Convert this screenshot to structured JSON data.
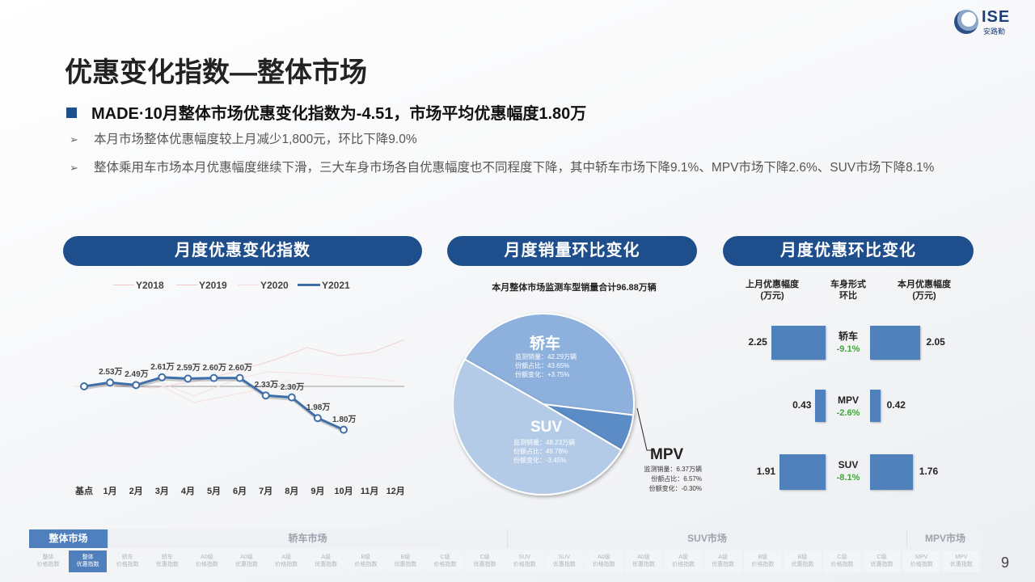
{
  "logo": {
    "text": "ISE",
    "sub": "安路勤"
  },
  "title": "优惠变化指数—整体市场",
  "headline": "MADE·10月整体市场优惠变化指数为-4.51，市场平均优惠幅度1.80万",
  "bullets": [
    "本月市场整体优惠幅度较上月减少1,800元，环比下降9.0%",
    "整体乘用车市场本月优惠幅度继续下滑，三大车身市场各自优惠幅度也不同程度下降，其中轿车市场下降9.1%、MPV市场下降2.6%、SUV市场下降8.1%"
  ],
  "sections": {
    "index": "月度优惠变化指数",
    "sales": "月度销量环比变化",
    "discount": "月度优惠环比变化"
  },
  "chart_data": [
    {
      "type": "line",
      "categories": [
        "基点",
        "1月",
        "2月",
        "3月",
        "4月",
        "5月",
        "6月",
        "7月",
        "8月",
        "9月",
        "10月",
        "11月",
        "12月"
      ],
      "legend": [
        "Y2018",
        "Y2019",
        "Y2020",
        "Y2021"
      ],
      "series": [
        {
          "name": "Y2021",
          "values": [
            2.47,
            2.53,
            2.49,
            2.61,
            2.59,
            2.6,
            2.6,
            2.33,
            2.3,
            1.98,
            1.8,
            null,
            null
          ],
          "labels": [
            "",
            "2.53万",
            "2.49万",
            "2.61万",
            "2.59万",
            "2.60万",
            "2.60万",
            "2.33万",
            "2.30万",
            "1.98万",
            "1.80万",
            "",
            ""
          ]
        }
      ]
    },
    {
      "type": "pie",
      "title": "本月整体市场监测车型销量合计96.88万辆",
      "slices": [
        {
          "name": "轿车",
          "share": 43.65,
          "info": [
            "监测销量：42.29万辆",
            "份额占比：43.65%",
            "份额变化：+3.75%"
          ]
        },
        {
          "name": "SUV",
          "share": 49.78,
          "info": [
            "监测销量：48.23万辆",
            "份额占比：49.78%",
            "份额变化：-3.45%"
          ]
        },
        {
          "name": "MPV",
          "share": 6.57,
          "info": [
            "监测销量：6.37万辆",
            "份额占比：6.57%",
            "份额变化：-0.30%"
          ]
        }
      ]
    },
    {
      "type": "bar",
      "headers": [
        "上月优惠幅度\n(万元)",
        "车身形式\n环比",
        "本月优惠幅度\n(万元)"
      ],
      "rows": [
        {
          "name": "轿车",
          "pct": "-9.1%",
          "last": 2.25,
          "last_label": "2.25",
          "this": 2.05,
          "this_label": "2.05"
        },
        {
          "name": "MPV",
          "pct": "-2.6%",
          "last": 0.43,
          "last_label": "0.43",
          "this": 0.42,
          "this_label": "0.42"
        },
        {
          "name": "SUV",
          "pct": "-8.1%",
          "last": 1.91,
          "last_label": "1.91",
          "this": 1.76,
          "this_label": "1.76"
        }
      ]
    }
  ],
  "nav": {
    "groups": [
      "整体市场",
      "轿车市场",
      "SUV市场",
      "MPV市场"
    ],
    "items": [
      [
        "整体",
        "价格指数"
      ],
      [
        "整体",
        "优惠指数"
      ],
      [
        "轿车",
        "价格指数"
      ],
      [
        "轿车",
        "优惠指数"
      ],
      [
        "A0级",
        "价格指数"
      ],
      [
        "A0级",
        "优惠指数"
      ],
      [
        "A级",
        "价格指数"
      ],
      [
        "A级",
        "优惠指数"
      ],
      [
        "B级",
        "价格指数"
      ],
      [
        "B级",
        "优惠指数"
      ],
      [
        "C级",
        "价格指数"
      ],
      [
        "C级",
        "优惠指数"
      ],
      [
        "SUV",
        "价格指数"
      ],
      [
        "SUV",
        "优惠指数"
      ],
      [
        "A0级",
        "价格指数"
      ],
      [
        "A0级",
        "优惠指数"
      ],
      [
        "A级",
        "价格指数"
      ],
      [
        "A级",
        "优惠指数"
      ],
      [
        "B级",
        "价格指数"
      ],
      [
        "B级",
        "优惠指数"
      ],
      [
        "C级",
        "价格指数"
      ],
      [
        "C级",
        "优惠指数"
      ],
      [
        "MPV",
        "价格指数"
      ],
      [
        "MPV",
        "优惠指数"
      ]
    ]
  },
  "page_number": "9",
  "colors": {
    "primary": "#1f4e8c",
    "bar": "#4f81bd",
    "positive": "#3fa635"
  }
}
